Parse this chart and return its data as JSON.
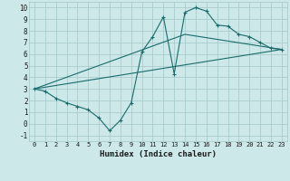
{
  "xlabel": "Humidex (Indice chaleur)",
  "bg_color": "#cce8e8",
  "grid_color": "#aacccc",
  "line_color": "#1a6b6b",
  "xlim": [
    -0.5,
    23.5
  ],
  "ylim": [
    -1.5,
    10.5
  ],
  "xticks": [
    0,
    1,
    2,
    3,
    4,
    5,
    6,
    7,
    8,
    9,
    10,
    11,
    12,
    13,
    14,
    15,
    16,
    17,
    18,
    19,
    20,
    21,
    22,
    23
  ],
  "yticks": [
    -1,
    0,
    1,
    2,
    3,
    4,
    5,
    6,
    7,
    8,
    9,
    10
  ],
  "curve_x": [
    0,
    1,
    2,
    3,
    4,
    5,
    6,
    7,
    8,
    9,
    10,
    11,
    12,
    13,
    14,
    15,
    16,
    17,
    18,
    19,
    20,
    21,
    22,
    23
  ],
  "curve_y": [
    3.0,
    2.8,
    2.2,
    1.8,
    1.5,
    1.2,
    0.5,
    -0.6,
    0.3,
    1.8,
    6.2,
    7.5,
    9.2,
    4.3,
    9.6,
    10.0,
    9.7,
    8.5,
    8.4,
    7.7,
    7.5,
    7.0,
    6.5,
    6.4
  ],
  "line1_x": [
    0,
    23
  ],
  "line1_y": [
    3.0,
    6.4
  ],
  "line2_x": [
    0,
    14,
    23
  ],
  "line2_y": [
    3.0,
    7.7,
    6.4
  ]
}
